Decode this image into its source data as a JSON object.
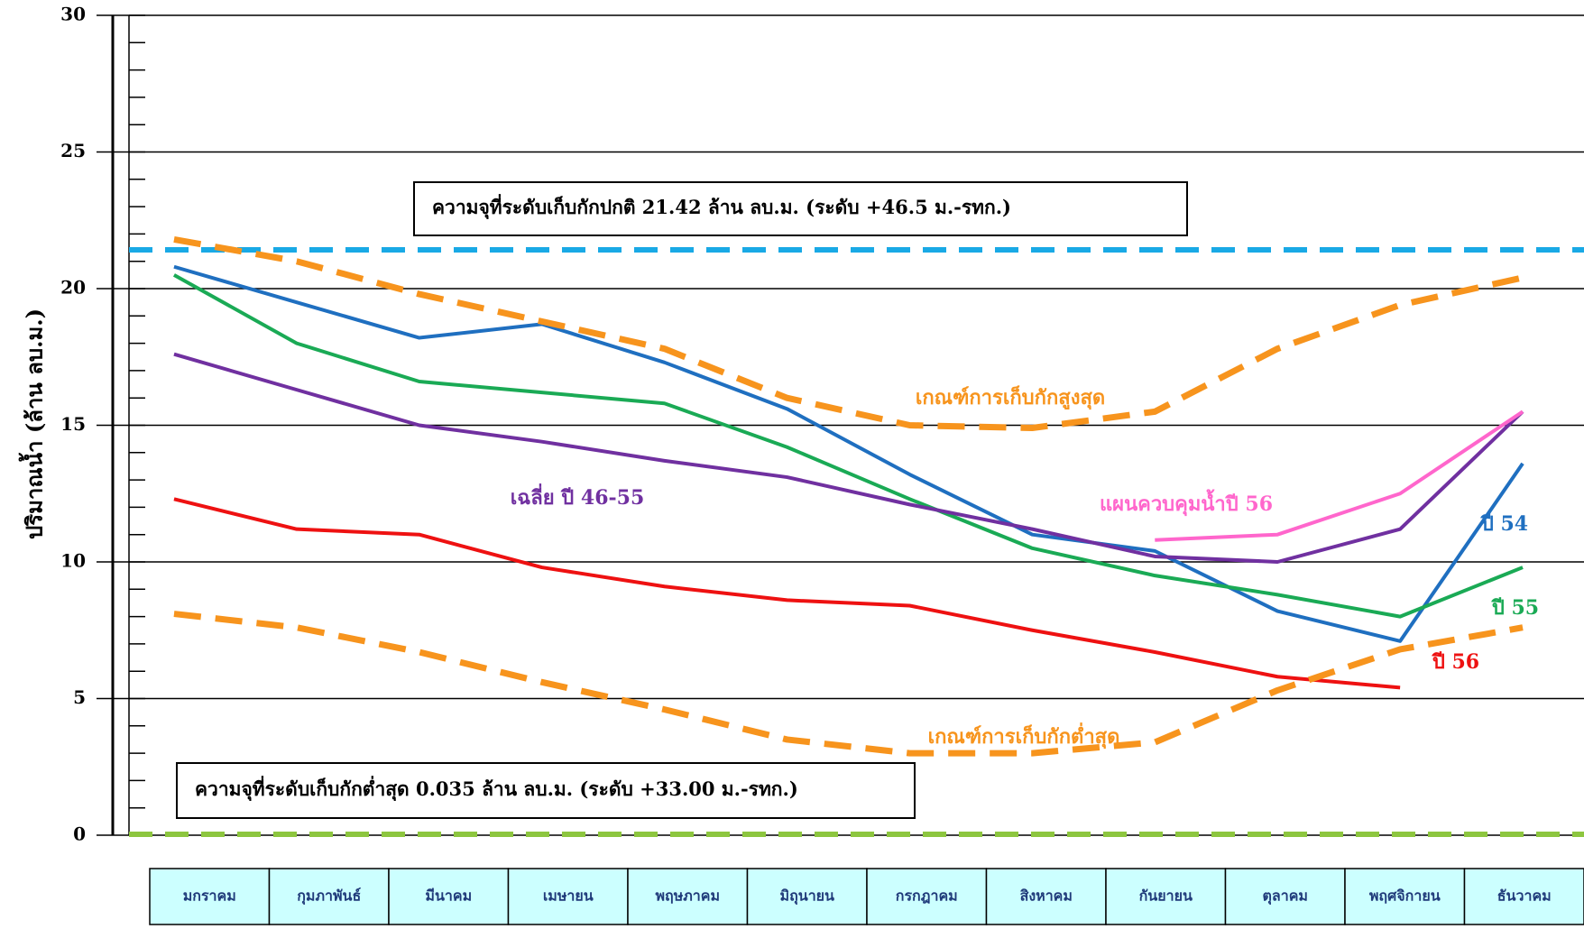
{
  "chart_data": {
    "type": "line",
    "y_label": "ปริมาณน้ำ (ล้าน ลบ.ม.)",
    "categories": [
      "มกราคม",
      "กุมภาพันธ์",
      "มีนาคม",
      "เมษายน",
      "พฤษภาคม",
      "มิถุนายน",
      "กรกฎาคม",
      "สิงหาคม",
      "กันยายน",
      "ตุลาคม",
      "พฤศจิกายน",
      "ธันวาคม"
    ],
    "ylim": [
      0,
      30
    ],
    "yticks": [
      0,
      5,
      10,
      15,
      20,
      25,
      30
    ],
    "grid": true,
    "series": [
      {
        "name": "ปี 54",
        "color": "#1f6fc0",
        "dash": false,
        "values": [
          20.8,
          19.5,
          18.2,
          18.7,
          17.3,
          15.6,
          13.2,
          11.0,
          10.4,
          8.2,
          7.1,
          13.6
        ]
      },
      {
        "name": "ปี 55",
        "color": "#1aaa55",
        "dash": false,
        "values": [
          20.5,
          18.0,
          16.6,
          16.2,
          15.8,
          14.2,
          12.3,
          10.5,
          9.5,
          8.8,
          8.0,
          9.8
        ]
      },
      {
        "name": "ปี 56",
        "color": "#ee1111",
        "dash": false,
        "values": [
          12.3,
          11.2,
          11.0,
          9.8,
          9.1,
          8.6,
          8.4,
          7.5,
          6.7,
          5.8,
          5.4,
          null
        ]
      },
      {
        "name": "เฉลี่ย ปี 46-55",
        "color": "#7030a0",
        "dash": false,
        "values": [
          17.6,
          16.3,
          15.0,
          14.4,
          13.7,
          13.1,
          12.1,
          11.2,
          10.2,
          10.0,
          11.2,
          15.5
        ]
      },
      {
        "name": "แผนควบคุมน้ำปี 56",
        "color": "#ff66cc",
        "dash": false,
        "values": [
          null,
          null,
          null,
          null,
          null,
          null,
          null,
          null,
          10.8,
          11.0,
          12.5,
          15.5
        ]
      },
      {
        "name": "เกณฑ์การเก็บกักสูงสุด",
        "color": "#f7941d",
        "dash": true,
        "values": [
          21.8,
          21.0,
          19.8,
          18.8,
          17.8,
          16.0,
          15.0,
          14.9,
          15.5,
          17.8,
          19.4,
          20.4
        ]
      },
      {
        "name": "เกณฑ์การเก็บกักต่ำสุด",
        "color": "#f7941d",
        "dash": true,
        "values": [
          8.1,
          7.6,
          6.7,
          5.6,
          4.6,
          3.5,
          3.0,
          3.0,
          3.4,
          5.3,
          6.8,
          7.6
        ]
      }
    ],
    "reference_lines": [
      {
        "text": "ความจุที่ระดับเก็บกักปกติ 21.42 ล้าน ลบ.ม. (ระดับ +46.5 ม.-รทก.)",
        "value": 21.42,
        "color": "#19a9e5"
      },
      {
        "text": "ความจุที่ระดับเก็บกักต่ำสุด 0.035 ล้าน ลบ.ม. (ระดับ +33.00 ม.-รทก.)",
        "value": 0.035,
        "color": "#8dc63f"
      }
    ]
  }
}
